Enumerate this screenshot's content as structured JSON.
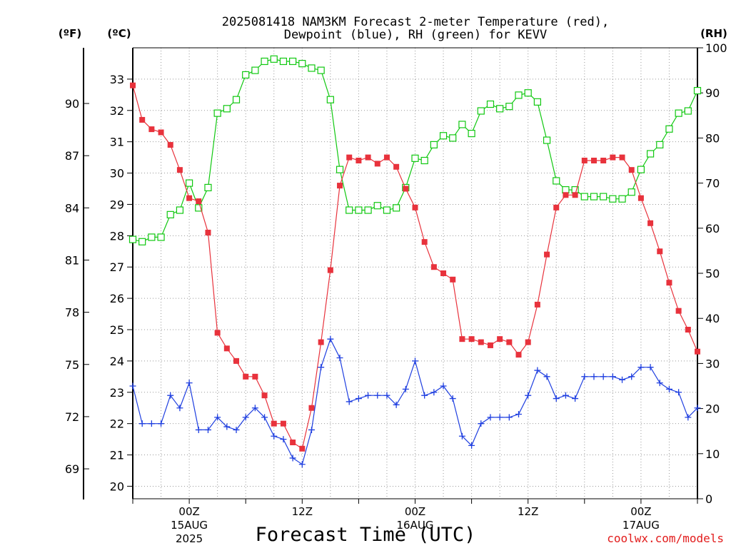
{
  "chart_data": {
    "type": "line",
    "title_line1": "2025081418 NAM3KM Forecast 2-meter Temperature (red),",
    "title_line2": "Dewpoint (blue), RH (green) for KEVV",
    "xlabel": "Forecast Time (UTC)",
    "credit": "coolwx.com/models",
    "left_unit_f": "(ºF)",
    "left_unit_c": "(ºC)",
    "right_unit": "(RH)",
    "colors": {
      "temperature": "#e8323c",
      "dewpoint": "#1f3fe0",
      "rh": "#10c810",
      "grid": "#999999"
    },
    "x_range_hours": [
      18,
      78
    ],
    "ylim_c": [
      19.6,
      34.0
    ],
    "ylim_rh": [
      0,
      100
    ],
    "fahrenheit_ticks": [
      69,
      72,
      75,
      78,
      81,
      84,
      87,
      90
    ],
    "celsius_ticks": [
      20,
      21,
      22,
      23,
      24,
      25,
      26,
      27,
      28,
      29,
      30,
      31,
      32,
      33
    ],
    "rh_ticks": [
      0,
      10,
      20,
      30,
      40,
      50,
      60,
      70,
      80,
      90,
      100
    ],
    "x_ticks": [
      {
        "hour": 24,
        "line1": "00Z",
        "line2": "15AUG",
        "line3": "2025"
      },
      {
        "hour": 36,
        "line1": "12Z",
        "line2": "",
        "line3": ""
      },
      {
        "hour": 48,
        "line1": "00Z",
        "line2": "16AUG",
        "line3": ""
      },
      {
        "hour": 60,
        "line1": "12Z",
        "line2": "",
        "line3": ""
      },
      {
        "hour": 72,
        "line1": "00Z",
        "line2": "17AUG",
        "line3": ""
      }
    ],
    "x": [
      18,
      19,
      20,
      21,
      22,
      23,
      24,
      25,
      26,
      27,
      28,
      29,
      30,
      31,
      32,
      33,
      34,
      35,
      36,
      37,
      38,
      39,
      40,
      41,
      42,
      43,
      44,
      45,
      46,
      47,
      48,
      49,
      50,
      51,
      52,
      53,
      54,
      55,
      56,
      57,
      58,
      59,
      60,
      61,
      62,
      63,
      64,
      65,
      66,
      67,
      68,
      69,
      70,
      71,
      72,
      73,
      74,
      75,
      76,
      77,
      78
    ],
    "series": [
      {
        "name": "temperature",
        "unit": "C",
        "values": [
          32.8,
          31.7,
          31.4,
          31.3,
          30.9,
          30.1,
          29.2,
          29.1,
          28.1,
          24.9,
          24.4,
          24.0,
          23.5,
          23.5,
          22.9,
          22.0,
          22.0,
          21.4,
          21.2,
          22.5,
          24.6,
          26.9,
          29.6,
          30.5,
          30.4,
          30.5,
          30.3,
          30.5,
          30.2,
          29.5,
          28.9,
          27.8,
          27.0,
          26.8,
          26.6,
          24.7,
          24.7,
          24.6,
          24.5,
          24.7,
          24.6,
          24.2,
          24.6,
          25.8,
          27.4,
          28.9,
          29.3,
          29.3,
          30.4,
          30.4,
          30.4,
          30.5,
          30.5,
          30.1,
          29.2,
          28.4,
          27.5,
          26.5,
          25.6,
          25.0,
          24.3
        ]
      },
      {
        "name": "dewpoint",
        "unit": "C",
        "values": [
          23.2,
          22.0,
          22.0,
          22.0,
          22.9,
          22.5,
          23.3,
          21.8,
          21.8,
          22.2,
          21.9,
          21.8,
          22.2,
          22.5,
          22.2,
          21.6,
          21.5,
          20.9,
          20.7,
          21.8,
          23.8,
          24.7,
          24.1,
          22.7,
          22.8,
          22.9,
          22.9,
          22.9,
          22.6,
          23.1,
          24.0,
          22.9,
          23.0,
          23.2,
          22.8,
          21.6,
          21.3,
          22.0,
          22.2,
          22.2,
          22.2,
          22.3,
          22.9,
          23.7,
          23.5,
          22.8,
          22.9,
          22.8,
          23.5,
          23.5,
          23.5,
          23.5,
          23.4,
          23.5,
          23.8,
          23.8,
          23.3,
          23.1,
          23.0,
          22.2,
          22.5
        ]
      },
      {
        "name": "rh",
        "unit": "%",
        "values": [
          57.5,
          57.0,
          58.0,
          58.0,
          63.0,
          64.0,
          70.0,
          64.5,
          69.0,
          85.5,
          86.5,
          88.5,
          94.0,
          95.0,
          97.0,
          97.5,
          97.0,
          97.0,
          96.5,
          95.5,
          95.0,
          88.5,
          73.0,
          64.0,
          64.0,
          64.0,
          65.0,
          64.0,
          64.5,
          69.0,
          75.5,
          75.0,
          78.5,
          80.5,
          80.0,
          83.0,
          81.0,
          86.0,
          87.5,
          86.5,
          87.0,
          89.5,
          90.0,
          88.0,
          79.5,
          70.5,
          68.5,
          68.5,
          67.0,
          67.0,
          67.0,
          66.5,
          66.5,
          68.0,
          73.0,
          76.5,
          78.5,
          82.0,
          85.5,
          86.0,
          90.5
        ]
      }
    ]
  }
}
